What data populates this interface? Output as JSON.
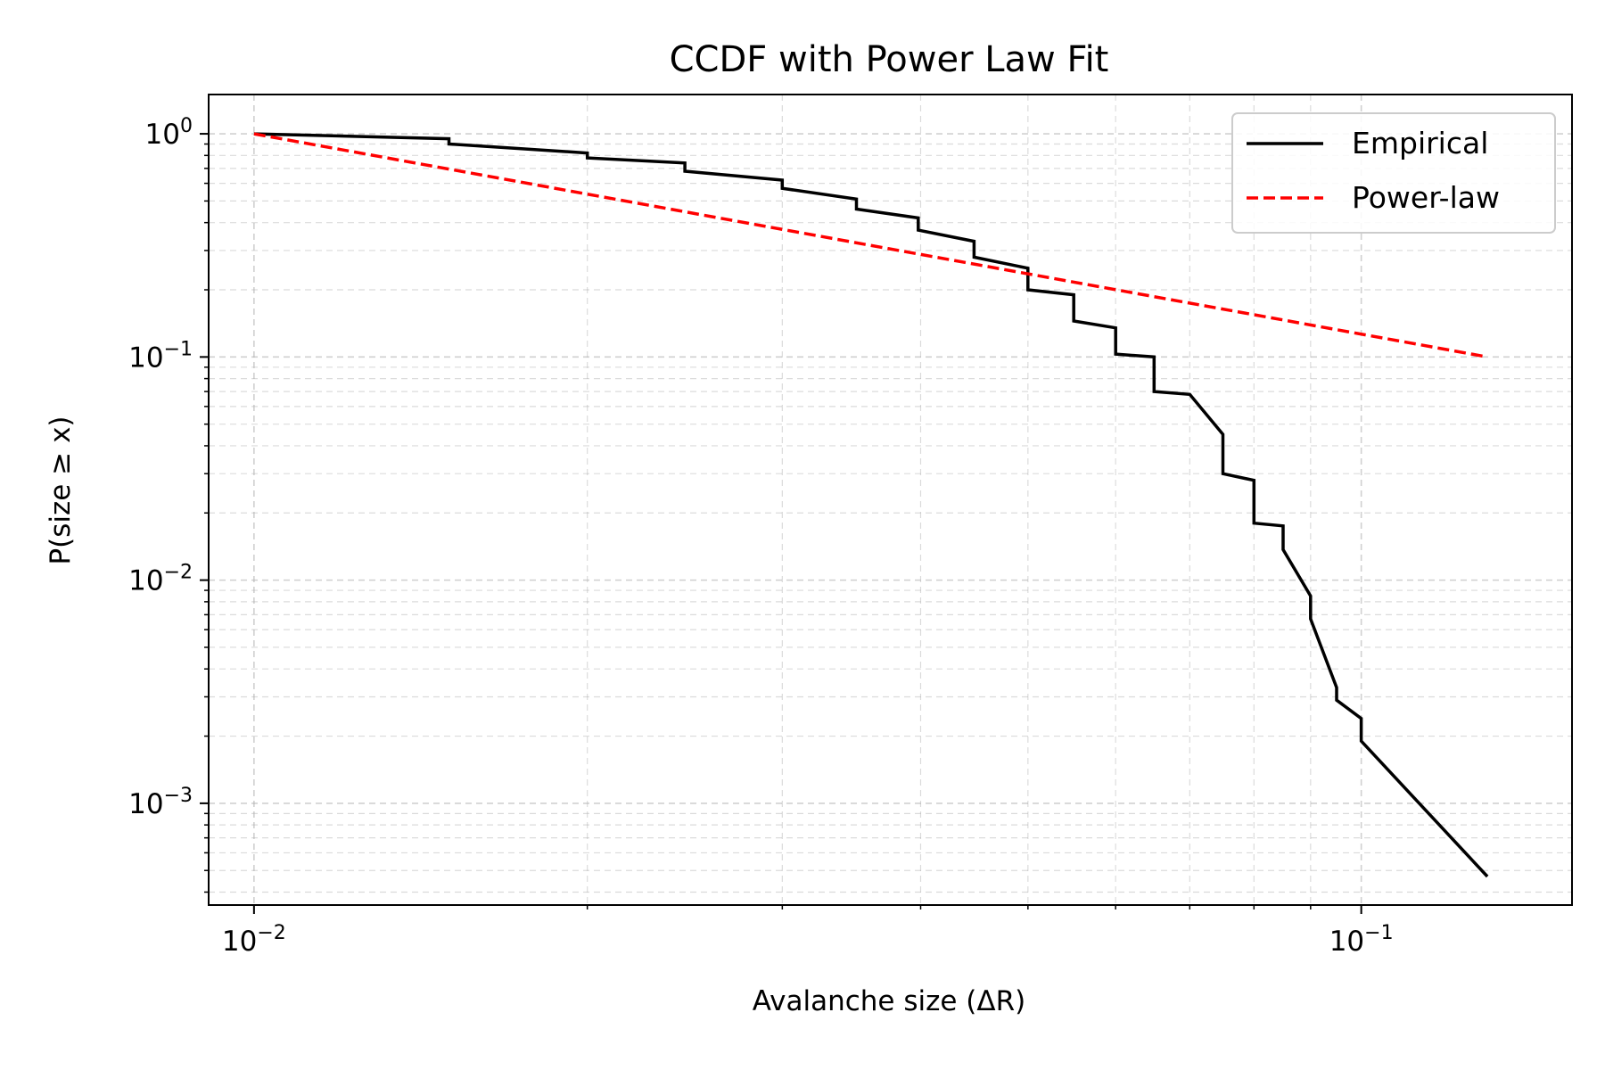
{
  "chart_data": {
    "type": "line",
    "title": "CCDF with Power Law Fit",
    "xlabel": "Avalanche size (ΔR)",
    "ylabel": "P(size ≥ x)",
    "xscale": "log",
    "yscale": "log",
    "xlim": [
      0.0091,
      0.155
    ],
    "ylim": [
      0.00035,
      1.5
    ],
    "grid": true,
    "legend_position": "top-right",
    "x_ticks": [
      {
        "value": 0.01,
        "base": "10",
        "exp": "−2"
      },
      {
        "value": 0.1,
        "base": "10",
        "exp": "−1"
      }
    ],
    "y_ticks": [
      {
        "value": 1,
        "base": "10",
        "exp": "0"
      },
      {
        "value": 0.1,
        "base": "10",
        "exp": "−1"
      },
      {
        "value": 0.01,
        "base": "10",
        "exp": "−2"
      },
      {
        "value": 0.001,
        "base": "10",
        "exp": "−3"
      }
    ],
    "series": [
      {
        "name": "Empirical",
        "color": "#000000",
        "style": "solid",
        "x": [
          0.01,
          0.015,
          0.015,
          0.02,
          0.02,
          0.0245,
          0.0245,
          0.03,
          0.03,
          0.035,
          0.035,
          0.0398,
          0.0398,
          0.0447,
          0.0447,
          0.05,
          0.05,
          0.055,
          0.055,
          0.06,
          0.06,
          0.065,
          0.065,
          0.07,
          0.075,
          0.075,
          0.08,
          0.08,
          0.085,
          0.085,
          0.09,
          0.09,
          0.095,
          0.095,
          0.1,
          0.1,
          0.13
        ],
        "y": [
          1.0,
          0.95,
          0.9,
          0.82,
          0.78,
          0.74,
          0.68,
          0.62,
          0.57,
          0.51,
          0.46,
          0.42,
          0.37,
          0.33,
          0.28,
          0.25,
          0.2,
          0.19,
          0.145,
          0.135,
          0.103,
          0.1,
          0.07,
          0.068,
          0.045,
          0.03,
          0.028,
          0.018,
          0.0175,
          0.0137,
          0.0085,
          0.0067,
          0.0033,
          0.0029,
          0.0024,
          0.0019,
          0.00047
        ]
      },
      {
        "name": "Power-law",
        "color": "#ff0000",
        "style": "dashed",
        "x": [
          0.01,
          0.13
        ],
        "y": [
          1.0,
          0.1
        ]
      }
    ]
  }
}
